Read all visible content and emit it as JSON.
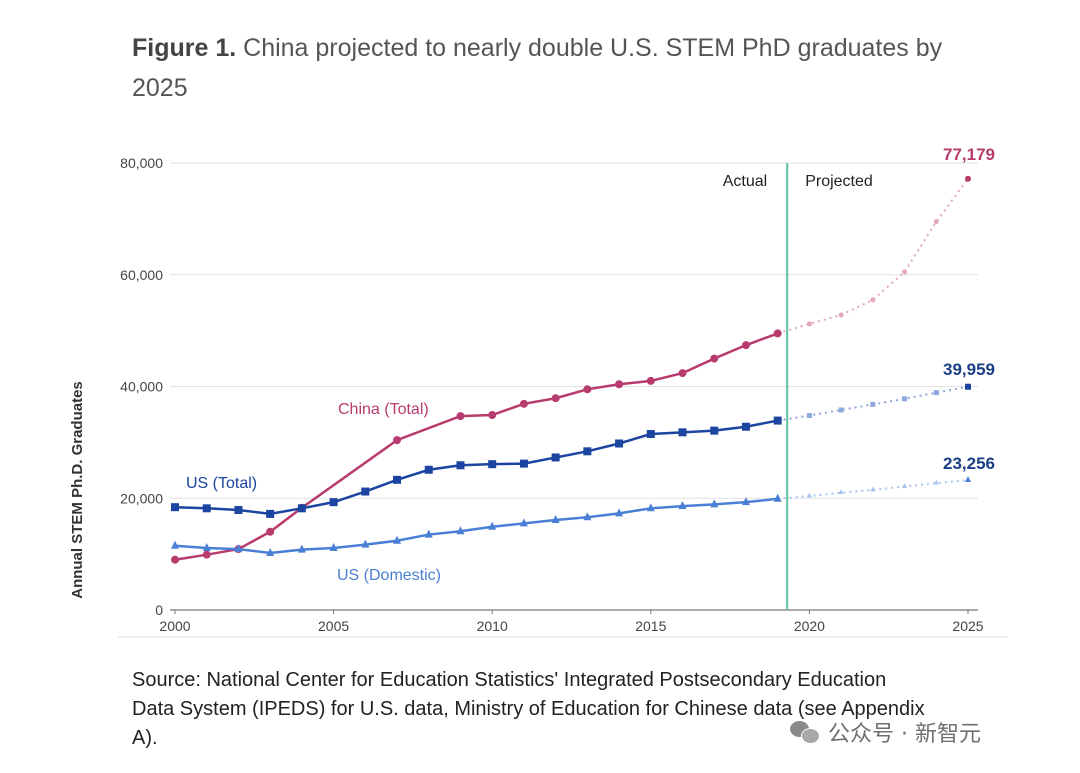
{
  "figure": {
    "label": "Figure 1.",
    "title": "China projected to nearly double U.S. STEM PhD graduates by 2025"
  },
  "source_text": "Source: National Center for Education Statistics' Integrated Postsecondary Education Data System (IPEDS) for U.S. data, Ministry of Education for Chinese data (see Appendix A).",
  "watermark": {
    "text": "公众号 · 新智元"
  },
  "chart_data": {
    "type": "line",
    "ylabel": "Annual STEM Ph.D. Graduates",
    "xlabel": "",
    "xlim": [
      2000,
      2025
    ],
    "ylim": [
      0,
      80000
    ],
    "x_ticks": [
      "2000",
      "2005",
      "2010",
      "2015",
      "2020",
      "2025"
    ],
    "y_ticks": [
      "0",
      "20,000",
      "40,000",
      "60,000",
      "80,000"
    ],
    "grid": "horizontal",
    "divider_year": 2019.3,
    "region_labels": {
      "actual": "Actual",
      "projected": "Projected"
    },
    "end_labels": {
      "china": "77,179",
      "us_total": "39,959",
      "us_domestic": "23,256"
    },
    "series": [
      {
        "name": "China (Total)",
        "color": "#b83b6e",
        "projected_color": "#e3a5bd",
        "marker": "circle",
        "actual": [
          [
            2000,
            9000
          ],
          [
            2001,
            9900
          ],
          [
            2002,
            10900
          ],
          [
            2003,
            14000
          ],
          [
            2004,
            18300
          ],
          [
            2007,
            30400
          ],
          [
            2009,
            34700
          ],
          [
            2010,
            34900
          ],
          [
            2011,
            36900
          ],
          [
            2012,
            37900
          ],
          [
            2013,
            39500
          ],
          [
            2014,
            40400
          ],
          [
            2015,
            41000
          ],
          [
            2016,
            42400
          ],
          [
            2017,
            45000
          ],
          [
            2018,
            47400
          ],
          [
            2019,
            49500
          ]
        ],
        "projected": [
          [
            2019,
            49500
          ],
          [
            2020,
            51200
          ],
          [
            2021,
            52800
          ],
          [
            2022,
            55500
          ],
          [
            2023,
            60500
          ],
          [
            2024,
            69500
          ],
          [
            2025,
            77179
          ]
        ]
      },
      {
        "name": "US (Total)",
        "color": "#1b45a0",
        "projected_color": "#8fa8dc",
        "marker": "square",
        "actual": [
          [
            2000,
            18400
          ],
          [
            2001,
            18200
          ],
          [
            2002,
            17900
          ],
          [
            2003,
            17200
          ],
          [
            2004,
            18200
          ],
          [
            2005,
            19300
          ],
          [
            2006,
            21200
          ],
          [
            2007,
            23300
          ],
          [
            2008,
            25100
          ],
          [
            2009,
            25900
          ],
          [
            2010,
            26100
          ],
          [
            2011,
            26200
          ],
          [
            2012,
            27300
          ],
          [
            2013,
            28400
          ],
          [
            2014,
            29800
          ],
          [
            2015,
            31500
          ],
          [
            2016,
            31800
          ],
          [
            2017,
            32100
          ],
          [
            2018,
            32800
          ],
          [
            2019,
            33900
          ]
        ],
        "projected": [
          [
            2019,
            33900
          ],
          [
            2020,
            34800
          ],
          [
            2021,
            35800
          ],
          [
            2022,
            36800
          ],
          [
            2023,
            37800
          ],
          [
            2024,
            38900
          ],
          [
            2025,
            39959
          ]
        ]
      },
      {
        "name": "US (Domestic)",
        "color": "#4a7fd6",
        "projected_color": "#a8c4ee",
        "marker": "triangle",
        "actual": [
          [
            2000,
            11500
          ],
          [
            2001,
            11100
          ],
          [
            2002,
            10900
          ],
          [
            2003,
            10200
          ],
          [
            2004,
            10800
          ],
          [
            2005,
            11100
          ],
          [
            2006,
            11700
          ],
          [
            2007,
            12400
          ],
          [
            2008,
            13500
          ],
          [
            2009,
            14100
          ],
          [
            2010,
            14900
          ],
          [
            2011,
            15500
          ],
          [
            2012,
            16100
          ],
          [
            2013,
            16600
          ],
          [
            2014,
            17300
          ],
          [
            2015,
            18200
          ],
          [
            2016,
            18600
          ],
          [
            2017,
            18900
          ],
          [
            2018,
            19300
          ],
          [
            2019,
            19900
          ]
        ],
        "projected": [
          [
            2019,
            19900
          ],
          [
            2020,
            20400
          ],
          [
            2021,
            21000
          ],
          [
            2022,
            21500
          ],
          [
            2023,
            22100
          ],
          [
            2024,
            22700
          ],
          [
            2025,
            23256
          ]
        ]
      }
    ]
  }
}
